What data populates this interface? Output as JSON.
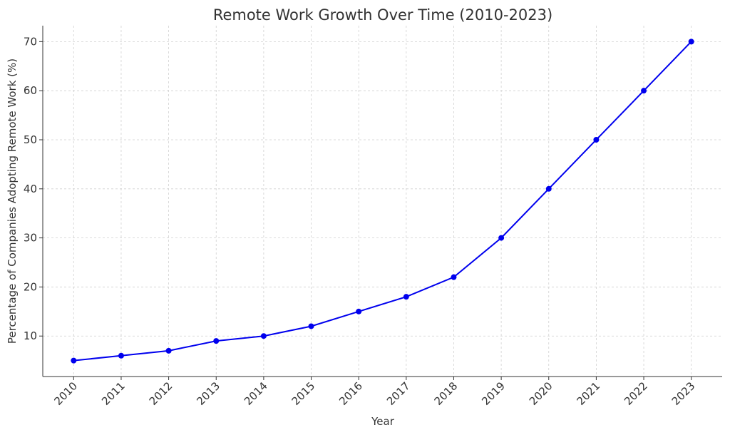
{
  "chart_data": {
    "type": "line",
    "title": "Remote Work Growth Over Time (2010-2023)",
    "xlabel": "Year",
    "ylabel": "Percentage of Companies Adopting Remote Work (%)",
    "x": [
      2010,
      2011,
      2012,
      2013,
      2014,
      2015,
      2016,
      2017,
      2018,
      2019,
      2020,
      2021,
      2022,
      2023
    ],
    "values": [
      5,
      6,
      7,
      9,
      10,
      12,
      15,
      18,
      22,
      30,
      40,
      50,
      60,
      70
    ],
    "color": "#0000ee",
    "xlim": [
      2009.35,
      2023.65
    ],
    "xticks": [
      2010,
      2011,
      2012,
      2013,
      2014,
      2015,
      2016,
      2017,
      2018,
      2019,
      2020,
      2021,
      2022,
      2023
    ],
    "ylim": [
      1.75,
      73.25
    ],
    "yticks": [
      10,
      20,
      30,
      40,
      50,
      60,
      70
    ],
    "grid": true
  }
}
